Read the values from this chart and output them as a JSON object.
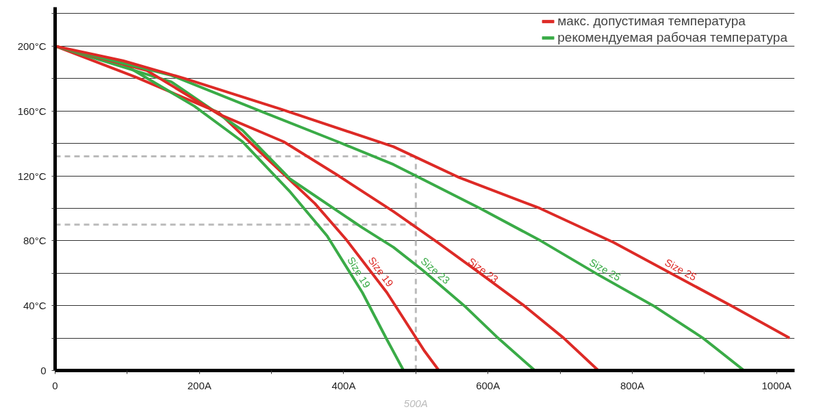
{
  "chart_data": {
    "type": "line",
    "xlim": [
      0,
      1025
    ],
    "ylim": [
      0,
      224
    ],
    "xticks": [
      0,
      {
        "value": 100,
        "label": null
      },
      {
        "value": 200,
        "label": "200A"
      },
      {
        "value": 300,
        "label": null
      },
      {
        "value": 400,
        "label": "400A"
      },
      {
        "value": 500,
        "label": null
      },
      {
        "value": 600,
        "label": "600A"
      },
      {
        "value": 700,
        "label": null
      },
      {
        "value": 800,
        "label": "800A"
      },
      {
        "value": 900,
        "label": null
      },
      {
        "value": 1000,
        "label": "1000A"
      }
    ],
    "yticks": [
      0,
      {
        "value": 20,
        "label": null
      },
      {
        "value": 40,
        "label": "40°C"
      },
      {
        "value": 60,
        "label": null
      },
      {
        "value": 80,
        "label": "80°C"
      },
      {
        "value": 100,
        "label": null
      },
      {
        "value": 120,
        "label": "120°C"
      },
      {
        "value": 140,
        "label": null
      },
      {
        "value": 160,
        "label": "160°C"
      },
      {
        "value": 180,
        "label": null
      },
      {
        "value": 200,
        "label": "200°C"
      },
      {
        "value": 220,
        "label": null
      }
    ],
    "grid": "y",
    "legend": "top right",
    "line_style": "solid",
    "marker": "none",
    "annotations": [
      {
        "text": "Size 19",
        "x": 443,
        "y": 58
      },
      {
        "text": "Size 19",
        "x": 412,
        "y": 58
      },
      {
        "text": "Size 23",
        "x": 587,
        "y": 58
      },
      {
        "text": "Size 23",
        "x": 520,
        "y": 58
      },
      {
        "text": "Size 25",
        "x": 862,
        "y": 58
      },
      {
        "text": "Size 25",
        "x": 757,
        "y": 58
      }
    ],
    "ref_lines": [
      {
        "axis": "x",
        "value": 500,
        "label": "500A",
        "color": "#bbbbbb",
        "line_style": "dashed"
      },
      {
        "axis": "y",
        "value": 132,
        "label": null,
        "color": "#bbbbbb",
        "line_style": "dashed"
      },
      {
        "axis": "y",
        "value": 90,
        "label": null,
        "color": "#bbbbbb",
        "line_style": "dashed"
      }
    ],
    "series": [
      {
        "name": "макс. допустимая температура",
        "color": "#dd2a26",
        "x": [
          0,
          111,
          227,
          293,
          360,
          403,
          460,
          512,
          532
        ],
        "values": [
          200,
          181,
          159,
          131,
          103,
          81,
          48,
          12,
          0
        ]
      },
      {
        "name": "рекомендуемая рабочая температура",
        "color": "#3aab47",
        "x": [
          0,
          94,
          193,
          260,
          326,
          377,
          426,
          460,
          483
        ],
        "values": [
          200,
          189,
          163,
          141,
          110,
          83,
          48,
          19,
          0
        ]
      },
      {
        "color": "#3aab47",
        "x": [
          0,
          161,
          260,
          326,
          426,
          469,
          509,
          567,
          614,
          665
        ],
        "values": [
          200,
          178,
          148,
          118,
          88,
          76,
          62,
          40,
          20,
          0
        ]
      },
      {
        "color": "#dd2a26",
        "x": [
          0,
          127,
          227,
          317,
          393,
          469,
          530,
          589,
          650,
          705,
          753
        ],
        "values": [
          200,
          185,
          158,
          141,
          120,
          98,
          79,
          60,
          40,
          20,
          0
        ]
      },
      {
        "color": "#3aab47",
        "x": [
          0,
          161,
          284,
          392,
          469,
          589,
          673,
          753,
          829,
          898,
          955
        ],
        "values": [
          200,
          182,
          160,
          141,
          127,
          100,
          80,
          59,
          40,
          20,
          0
        ]
      },
      {
        "color": "#dd2a26",
        "x": [
          0,
          94,
          180,
          314,
          469,
          560,
          672,
          774,
          941,
          1018
        ],
        "values": [
          200,
          191,
          180,
          161,
          138,
          119,
          100,
          79,
          39,
          20
        ]
      }
    ]
  }
}
